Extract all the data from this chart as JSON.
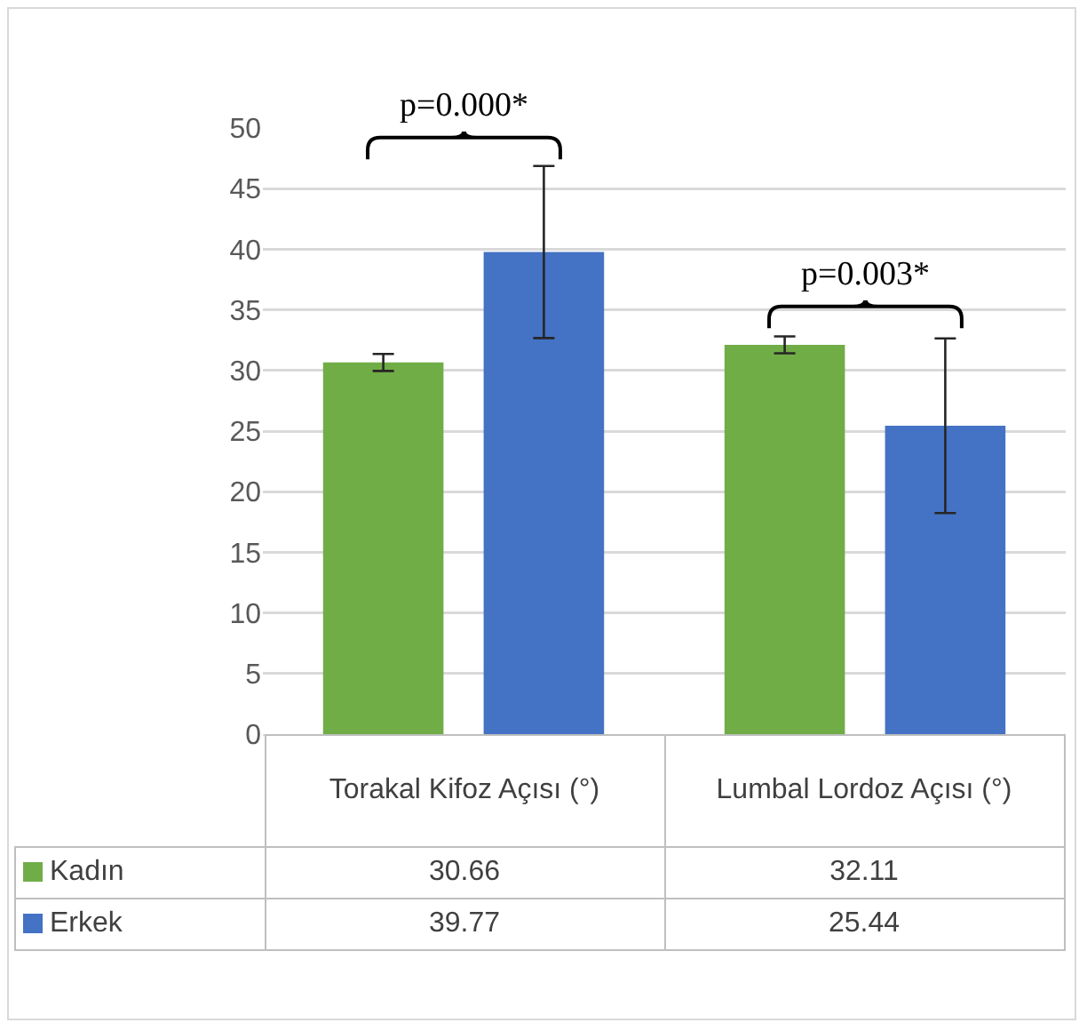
{
  "chart_data": {
    "type": "bar",
    "categories": [
      "Torakal Kifoz Açısı (°)",
      "Lumbal Lordoz Açısı (°)"
    ],
    "series": [
      {
        "name": "Kadın",
        "color": "#70ad47",
        "values": [
          30.66,
          32.11
        ],
        "errors": [
          0.7,
          0.7
        ]
      },
      {
        "name": "Erkek",
        "color": "#4472c4",
        "values": [
          39.77,
          25.44
        ],
        "errors": [
          7.1,
          7.2
        ]
      }
    ],
    "ylim": [
      0,
      50
    ],
    "legend": "bottom",
    "yticks": [
      0,
      5,
      10,
      15,
      20,
      25,
      30,
      35,
      40,
      45,
      50
    ],
    "grid": "y",
    "data_labels": true,
    "annotations": [
      "p=0.000*",
      "p=0.003*"
    ]
  }
}
